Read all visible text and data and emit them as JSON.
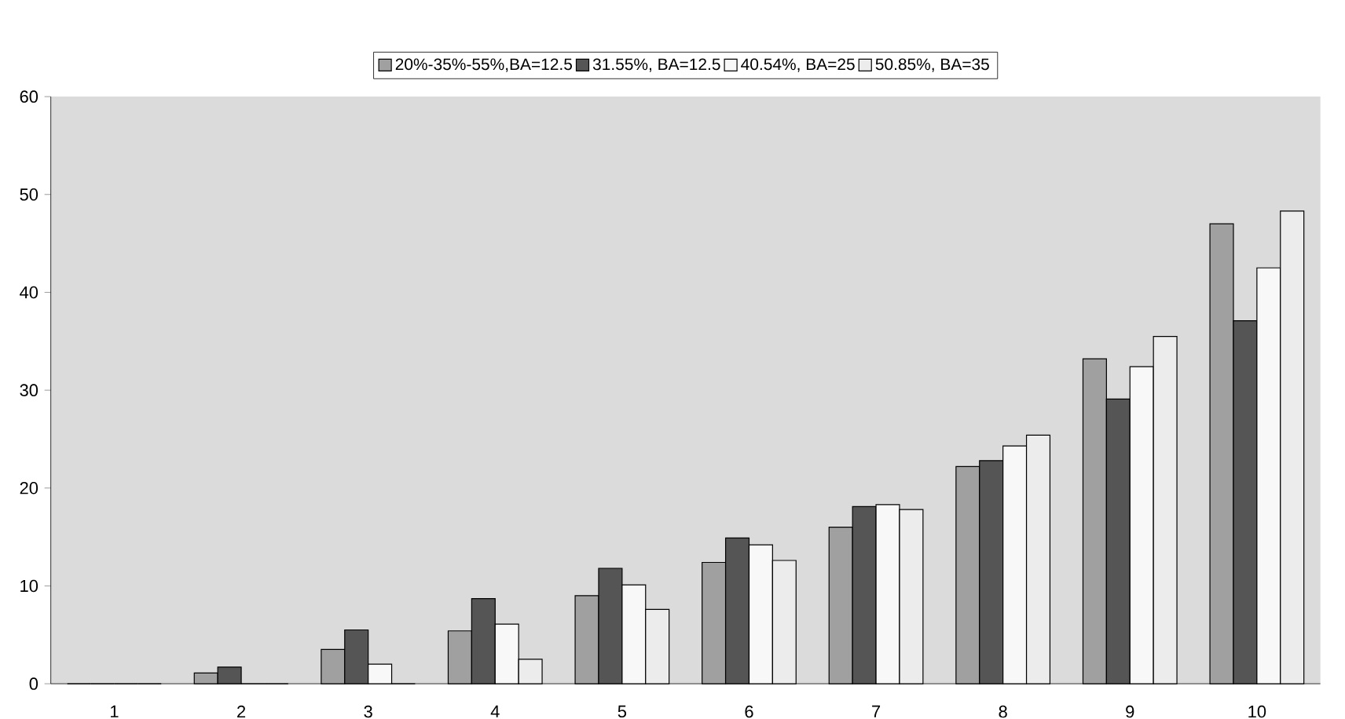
{
  "chart_data": {
    "type": "bar",
    "categories": [
      "1",
      "2",
      "3",
      "4",
      "5",
      "6",
      "7",
      "8",
      "9",
      "10"
    ],
    "series": [
      {
        "name": "20%-35%-55%,BA=12.5",
        "color": "#a0a0a0",
        "values": [
          0,
          1.1,
          3.5,
          5.4,
          9.0,
          12.4,
          16.0,
          22.2,
          33.2,
          47.0
        ]
      },
      {
        "name": "31.55%, BA=12.5",
        "color": "#555555",
        "values": [
          0,
          1.7,
          5.5,
          8.7,
          11.8,
          14.9,
          18.1,
          22.8,
          29.1,
          37.1
        ]
      },
      {
        "name": "40.54%, BA=25",
        "color": "#f8f8f8",
        "values": [
          0,
          0,
          2.0,
          6.1,
          10.1,
          14.2,
          18.3,
          24.3,
          32.4,
          42.5
        ]
      },
      {
        "name": "50.85%, BA=35",
        "color": "#ececec",
        "values": [
          0,
          0,
          0,
          2.5,
          7.6,
          12.6,
          17.8,
          25.4,
          35.5,
          48.3
        ]
      }
    ],
    "ylim": [
      0,
      60
    ],
    "yticks": [
      0,
      10,
      20,
      30,
      40,
      50,
      60
    ],
    "grid": false,
    "legend": "top"
  }
}
